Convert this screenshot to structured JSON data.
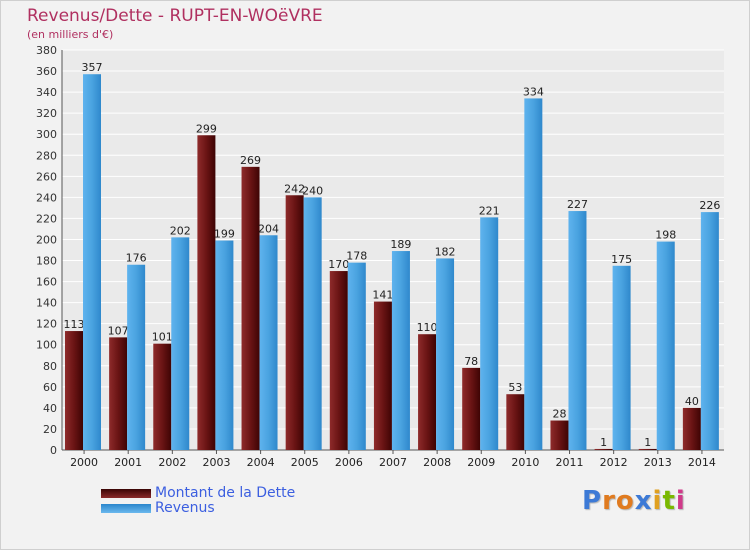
{
  "title": "Revenus/Dette - RUPT-EN-WOëVRE",
  "subtitle": "(en milliers d'€)",
  "legend": [
    "Montant de la Dette",
    "Revenus"
  ],
  "logo": "Proxiti",
  "colors": {
    "dette": "#7a1a1a",
    "revenus": "#4aa3e0",
    "title": "#b03060",
    "legend_text": "#3c5fe0"
  },
  "chart_data": {
    "type": "bar",
    "categories": [
      "2000",
      "2001",
      "2002",
      "2003",
      "2004",
      "2005",
      "2006",
      "2007",
      "2008",
      "2009",
      "2010",
      "2011",
      "2012",
      "2013",
      "2014"
    ],
    "series": [
      {
        "name": "Montant de la Dette",
        "values": [
          113,
          107,
          101,
          299,
          269,
          242,
          170,
          141,
          110,
          78,
          53,
          28,
          1,
          1,
          40
        ]
      },
      {
        "name": "Revenus",
        "values": [
          357,
          176,
          202,
          199,
          204,
          240,
          178,
          189,
          182,
          221,
          334,
          227,
          175,
          198,
          226
        ]
      }
    ],
    "ylim": [
      0,
      380
    ],
    "yticks": [
      0,
      20,
      40,
      60,
      80,
      100,
      120,
      140,
      160,
      180,
      200,
      220,
      240,
      260,
      280,
      300,
      320,
      340,
      360,
      380
    ],
    "grid": true,
    "legend_position": "bottom-left"
  }
}
